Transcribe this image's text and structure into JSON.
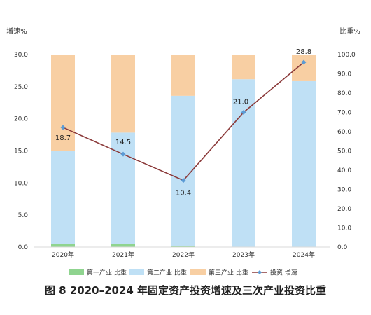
{
  "chart_data": {
    "type": "bar",
    "title": "图 8    2020–2024 年固定资产投资增速及三次产业投资比重",
    "categories": [
      "2020年",
      "2021年",
      "2022年",
      "2023年",
      "2024年"
    ],
    "left_axis": {
      "label": "增速%",
      "ylim": [
        0,
        30
      ],
      "ticks": [
        "0.0",
        "5.0",
        "10.0",
        "15.0",
        "20.0",
        "25.0",
        "30.0"
      ]
    },
    "right_axis": {
      "label": "比重%",
      "ylim": [
        0,
        100
      ],
      "ticks": [
        "0.0",
        "10.0",
        "20.0",
        "30.0",
        "40.0",
        "50.0",
        "60.0",
        "70.0",
        "80.0",
        "90.0",
        "100.0"
      ]
    },
    "series": [
      {
        "name": "第一产业 比重",
        "kind": "stacked-bar",
        "axis": "right",
        "color": "#8fd48f",
        "values": [
          1.5,
          1.5,
          0.6,
          0.2,
          0.2
        ]
      },
      {
        "name": "第二产业 比重",
        "kind": "stacked-bar",
        "axis": "right",
        "color": "#bfe0f5",
        "values": [
          48.5,
          58.0,
          78.0,
          87.0,
          86.0
        ]
      },
      {
        "name": "第三产业 比重",
        "kind": "stacked-bar",
        "axis": "right",
        "color": "#f8cfa3",
        "values": [
          50.0,
          40.5,
          21.4,
          12.8,
          13.8
        ]
      },
      {
        "name": "投资 增速",
        "kind": "line",
        "axis": "right",
        "color": "#8b3a3a",
        "marker_color": "#5b9bd5",
        "values": [
          62.2,
          48.3,
          34.7,
          70.0,
          96.0
        ],
        "labels": [
          "18.7",
          "14.5",
          "10.4",
          "21.0",
          "28.8"
        ]
      }
    ],
    "grid": false,
    "legend_position": "bottom"
  }
}
